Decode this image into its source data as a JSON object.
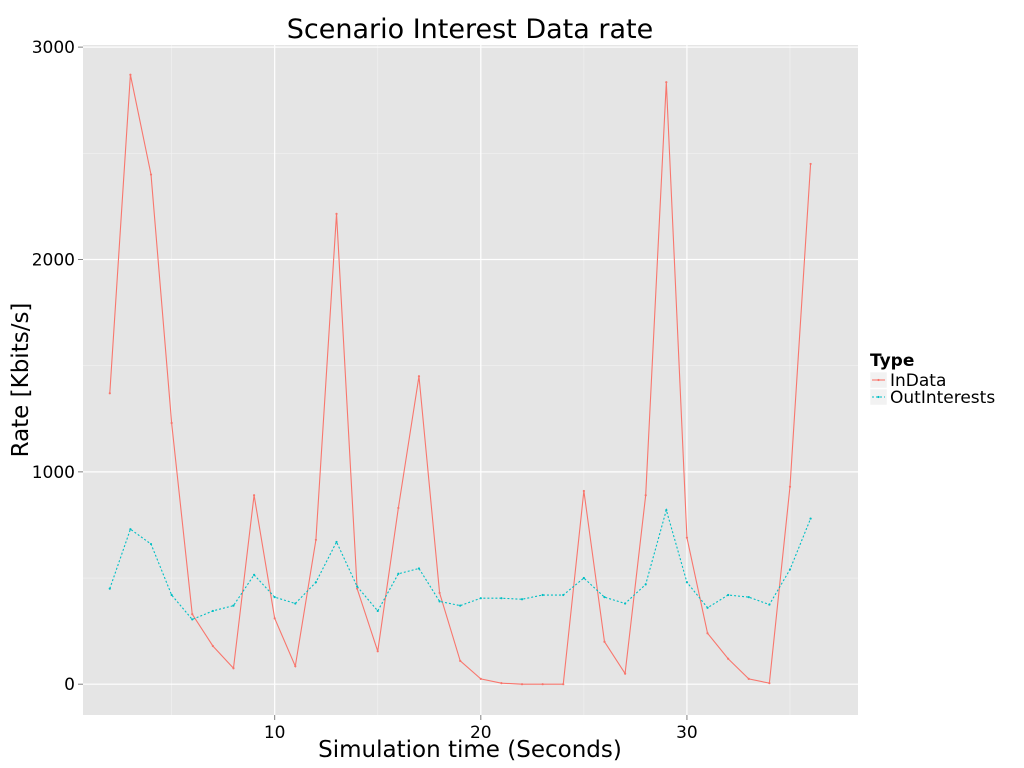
{
  "chart_data": {
    "type": "line",
    "title": "Scenario Interest Data rate",
    "xlabel": "Simulation time (Seconds)",
    "ylabel": "Rate [Kbits/s]",
    "xlim": [
      0.7,
      38.3
    ],
    "ylim": [
      -145,
      3010
    ],
    "x_ticks": [
      10,
      20,
      30
    ],
    "y_ticks": [
      0,
      1000,
      2000,
      3000
    ],
    "x_tick_labels": [
      "10",
      "20",
      "30"
    ],
    "y_tick_labels": [
      "0",
      "1000",
      "2000",
      "3000"
    ],
    "grid": true,
    "legend": {
      "title": "Type",
      "position": "right"
    },
    "x": [
      2,
      3,
      4,
      5,
      6,
      7,
      8,
      9,
      10,
      11,
      12,
      13,
      14,
      15,
      16,
      17,
      18,
      19,
      20,
      21,
      22,
      23,
      24,
      25,
      26,
      27,
      28,
      29,
      30,
      31,
      32,
      33,
      34,
      35,
      36
    ],
    "series": [
      {
        "name": "InData",
        "color": "#F8766D",
        "dash": "solid",
        "values": [
          1370,
          2870,
          2400,
          1230,
          330,
          180,
          75,
          890,
          310,
          85,
          680,
          2215,
          450,
          155,
          830,
          1450,
          430,
          110,
          25,
          5,
          0,
          0,
          0,
          910,
          200,
          50,
          890,
          2835,
          690,
          240,
          120,
          25,
          5,
          930,
          2450
        ]
      },
      {
        "name": "OutInterests",
        "color": "#00BFC4",
        "dash": "dotted",
        "values": [
          450,
          730,
          660,
          420,
          305,
          345,
          370,
          515,
          410,
          380,
          480,
          670,
          460,
          345,
          520,
          545,
          390,
          370,
          405,
          405,
          400,
          420,
          420,
          500,
          410,
          380,
          470,
          820,
          480,
          360,
          420,
          410,
          375,
          540,
          780
        ]
      }
    ]
  }
}
